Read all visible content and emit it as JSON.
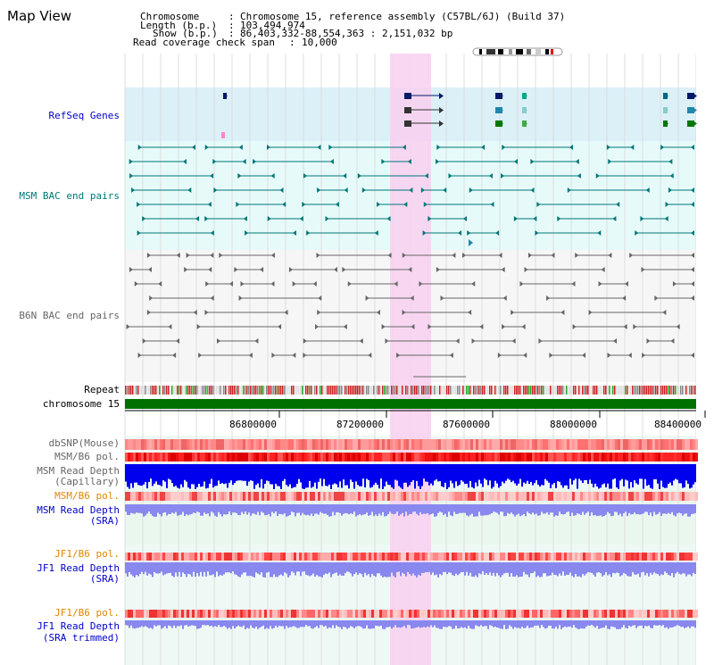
{
  "title": "Map View",
  "header": {
    "chromosome_label": "Chromosome",
    "chromosome_value": "Chromosome 15, reference assembly (C57BL/6J) (Build 37)",
    "length_label": "Length (b.p.)",
    "length_value": "103,494,974",
    "show_label": "Show (b.p.)",
    "show_value": "86,403,332-88,554,363 : 2,151,032 bp",
    "coverage_label": "Read coverage check span",
    "coverage_value": "10,000"
  },
  "tracks": {
    "refseq": "RefSeq Genes",
    "msm_bac": "MSM BAC end pairs",
    "b6n_bac": "B6N BAC end pairs",
    "repeat": "Repeat",
    "chromosome": "chromosome 15",
    "dbsnp": "dbSNP(Mouse)",
    "msm_b6_pol": "MSM/B6 pol.",
    "msm_read_cap_1": "MSM Read Depth",
    "msm_read_cap_2": "(Capillary)",
    "msm_b6_pol2": "MSM/B6 pol.",
    "msm_read_sra_1": "MSM Read Depth",
    "msm_read_sra_2": "(SRA)",
    "jf1_b6_pol": "JF1/B6 pol.",
    "jf1_read_sra_1": "JF1 Read Depth",
    "jf1_read_sra_2": "(SRA)",
    "jf1_b6_pol2": "JF1/B6 pol.",
    "jf1_read_trim_1": "JF1 Read Depth",
    "jf1_read_trim_2": "(SRA trimmed)"
  },
  "axis": {
    "ticks": [
      "86800000",
      "87200000",
      "87600000",
      "88000000",
      "88400000"
    ]
  },
  "colors": {
    "refseq_bg": "#dcf0f8",
    "bac_bg": "#e6fafa",
    "highlight": "#f8d0f0",
    "chromosome": "#007000",
    "depth_blue": "#0000ee",
    "depth_light": "#8888ee",
    "snp_red": "#ff7070"
  }
}
